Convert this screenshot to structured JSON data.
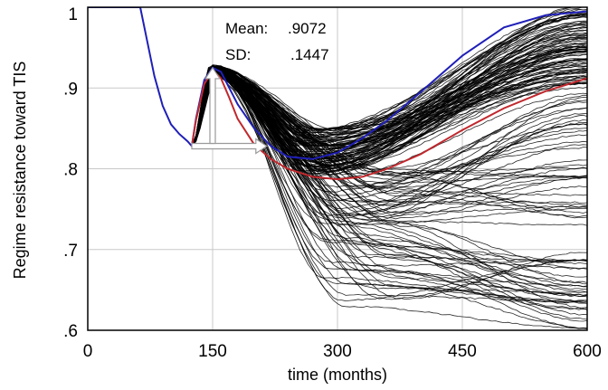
{
  "chart_data": {
    "type": "line",
    "title": "",
    "xlabel": "time (months)",
    "ylabel": "Regime resistance toward TIS",
    "xlim": [
      0,
      600
    ],
    "ylim": [
      0.6,
      1.0
    ],
    "x_ticks": [
      0,
      150,
      300,
      450,
      600
    ],
    "x_tick_labels": [
      "0",
      "150",
      "300",
      "450",
      "600"
    ],
    "y_ticks": [
      0.6,
      0.7,
      0.8,
      0.9,
      1.0
    ],
    "y_tick_labels": [
      ".6",
      ".7",
      ".8",
      ".9",
      "1"
    ],
    "grid": true,
    "annotations": {
      "mean_label": "Mean:",
      "mean_value": ".9072",
      "sd_label": "SD:",
      "sd_value": ".1447"
    },
    "colors": {
      "baseline": "#2b2bd6",
      "mean_run": "#1f1fb8",
      "highlight_run": "#c0282d",
      "ensemble": "#000000",
      "grid": "#c8c8c8",
      "arrow": "#9a9a9a"
    },
    "series": [
      {
        "color": "blue",
        "x": [
          0,
          63,
          70,
          80,
          90,
          100,
          110,
          120,
          125,
          130,
          140,
          150,
          160,
          170,
          180,
          200,
          220,
          240,
          270,
          300,
          330,
          360,
          400,
          450,
          500,
          550,
          600
        ],
        "values": [
          1.0,
          1.0,
          0.965,
          0.915,
          0.878,
          0.855,
          0.843,
          0.834,
          0.828,
          0.862,
          0.91,
          0.925,
          0.92,
          0.9,
          0.88,
          0.85,
          0.828,
          0.815,
          0.812,
          0.82,
          0.838,
          0.86,
          0.895,
          0.94,
          0.975,
          0.99,
          0.995
        ]
      },
      {
        "color": "red",
        "x": [
          125,
          130,
          140,
          150,
          160,
          170,
          180,
          200,
          220,
          240,
          270,
          300,
          330,
          360,
          400,
          450,
          500,
          550,
          600
        ],
        "values": [
          0.828,
          0.86,
          0.905,
          0.922,
          0.912,
          0.888,
          0.862,
          0.83,
          0.812,
          0.8,
          0.79,
          0.787,
          0.79,
          0.8,
          0.818,
          0.848,
          0.875,
          0.896,
          0.912
        ]
      }
    ]
  }
}
